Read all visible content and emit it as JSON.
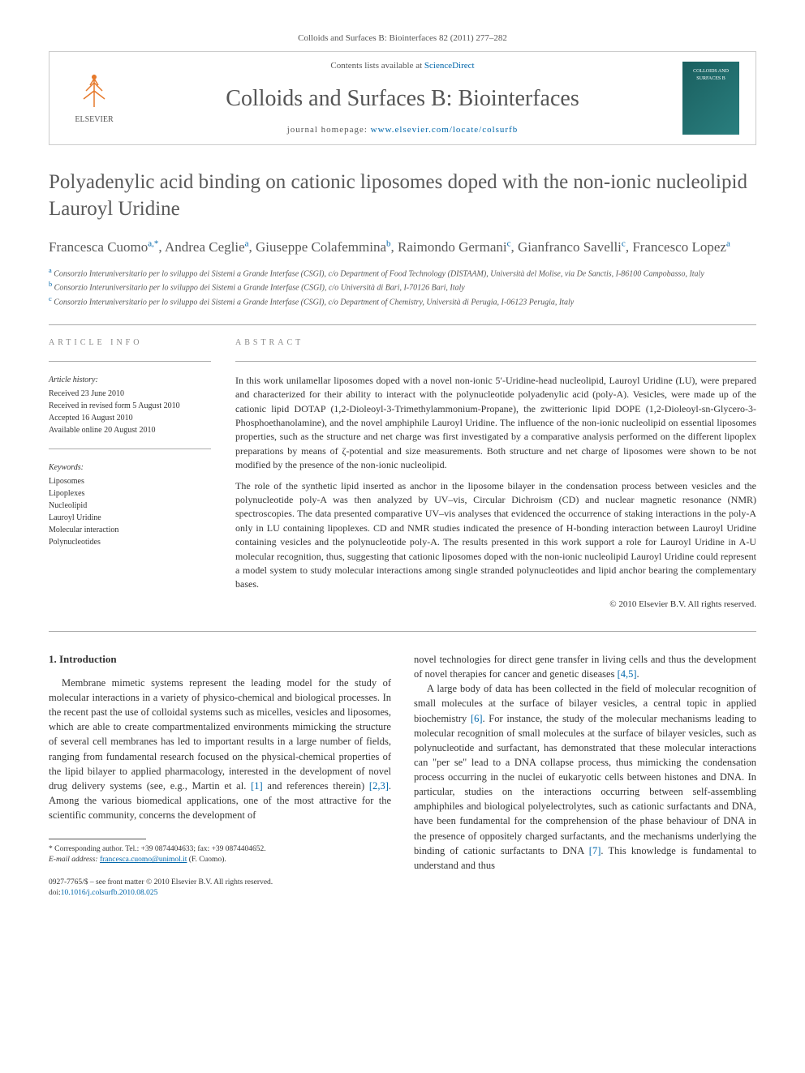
{
  "header": {
    "citation": "Colloids and Surfaces B: Biointerfaces 82 (2011) 277–282",
    "contents_prefix": "Contents lists available at ",
    "contents_link": "ScienceDirect",
    "journal_name": "Colloids and Surfaces B: Biointerfaces",
    "homepage_prefix": "journal homepage: ",
    "homepage_url": "www.elsevier.com/locate/colsurfb",
    "publisher_label": "ELSEVIER",
    "cover_text": "COLLOIDS AND SURFACES B"
  },
  "article": {
    "title": "Polyadenylic acid binding on cationic liposomes doped with the non-ionic nucleolipid Lauroyl Uridine",
    "authors_html": "Francesca Cuomo<sup>a,*</sup>, Andrea Ceglie<sup>a</sup>, Giuseppe Colafemmina<sup>b</sup>, Raimondo Germani<sup>c</sup>, Gianfranco Savelli<sup>c</sup>, Francesco Lopez<sup>a</sup>",
    "affiliations": [
      {
        "sup": "a",
        "text": "Consorzio Interuniversitario per lo sviluppo dei Sistemi a Grande Interfase (CSGI), c/o Department of Food Technology (DISTAAM), Università del Molise, via De Sanctis, I-86100 Campobasso, Italy"
      },
      {
        "sup": "b",
        "text": "Consorzio Interuniversitario per lo sviluppo dei Sistemi a Grande Interfase (CSGI), c/o Università di Bari, I-70126 Bari, Italy"
      },
      {
        "sup": "c",
        "text": "Consorzio Interuniversitario per lo sviluppo dei Sistemi a Grande Interfase (CSGI), c/o Department of Chemistry, Università di Perugia, I-06123 Perugia, Italy"
      }
    ]
  },
  "info": {
    "heading": "article info",
    "history_label": "Article history:",
    "history": [
      "Received 23 June 2010",
      "Received in revised form 5 August 2010",
      "Accepted 16 August 2010",
      "Available online 20 August 2010"
    ],
    "keywords_label": "Keywords:",
    "keywords": [
      "Liposomes",
      "Lipoplexes",
      "Nucleolipid",
      "Lauroyl Uridine",
      "Molecular interaction",
      "Polynucleotides"
    ]
  },
  "abstract": {
    "heading": "abstract",
    "paragraphs": [
      "In this work unilamellar liposomes doped with a novel non-ionic 5′-Uridine-head nucleolipid, Lauroyl Uridine (LU), were prepared and characterized for their ability to interact with the polynucleotide polyadenylic acid (poly-A). Vesicles, were made up of the cationic lipid DOTAP (1,2-Dioleoyl-3-Trimethylammonium-Propane), the zwitterionic lipid DOPE (1,2-Dioleoyl-sn-Glycero-3-Phosphoethanolamine), and the novel amphiphile Lauroyl Uridine. The influence of the non-ionic nucleolipid on essential liposomes properties, such as the structure and net charge was first investigated by a comparative analysis performed on the different lipoplex preparations by means of ζ-potential and size measurements. Both structure and net charge of liposomes were shown to be not modified by the presence of the non-ionic nucleolipid.",
      "The role of the synthetic lipid inserted as anchor in the liposome bilayer in the condensation process between vesicles and the polynucleotide poly-A was then analyzed by UV–vis, Circular Dichroism (CD) and nuclear magnetic resonance (NMR) spectroscopies. The data presented comparative UV–vis analyses that evidenced the occurrence of staking interactions in the poly-A only in LU containing lipoplexes. CD and NMR studies indicated the presence of H-bonding interaction between Lauroyl Uridine containing vesicles and the polynucleotide poly-A. The results presented in this work support a role for Lauroyl Uridine in A-U molecular recognition, thus, suggesting that cationic liposomes doped with the non-ionic nucleolipid Lauroyl Uridine could represent a model system to study molecular interactions among single stranded polynucleotides and lipid anchor bearing the complementary bases."
    ],
    "copyright": "© 2010 Elsevier B.V. All rights reserved."
  },
  "body": {
    "section_number": "1.",
    "section_title": "Introduction",
    "col1_p1": "Membrane mimetic systems represent the leading model for the study of molecular interactions in a variety of physico-chemical and biological processes. In the recent past the use of colloidal systems such as micelles, vesicles and liposomes, which are able to create compartmentalized environments mimicking the structure of several cell membranes has led to important results in a large number of fields, ranging from fundamental research focused on the physical-chemical properties of the lipid bilayer to applied pharmacology, interested in the development of novel drug delivery systems (see, e.g., Martin et al. ",
    "ref1": "[1]",
    "col1_p1b": " and references therein) ",
    "ref23": "[2,3]",
    "col1_p1c": ". Among the various biomedical applications, one of the most attractive for the scientific community, concerns the development of",
    "col2_p1a": "novel technologies for direct gene transfer in living cells and thus the development of novel therapies for cancer and genetic diseases ",
    "ref45": "[4,5]",
    "col2_p1b": ".",
    "col2_p2a": "A large body of data has been collected in the field of molecular recognition of small molecules at the surface of bilayer vesicles, a central topic in applied biochemistry ",
    "ref6": "[6]",
    "col2_p2b": ". For instance, the study of the molecular mechanisms leading to molecular recognition of small molecules at the surface of bilayer vesicles, such as polynucleotide and surfactant, has demonstrated that these molecular interactions can \"per se\" lead to a DNA collapse process, thus mimicking the condensation process occurring in the nuclei of eukaryotic cells between histones and DNA. In particular, studies on the interactions occurring between self-assembling amphiphiles and biological polyelectrolytes, such as cationic surfactants and DNA, have been fundamental for the comprehension of the phase behaviour of DNA in the presence of oppositely charged surfactants, and the mechanisms underlying the binding of cationic surfactants to DNA ",
    "ref7": "[7]",
    "col2_p2c": ". This knowledge is fundamental to understand and thus"
  },
  "footnote": {
    "corresponding": "* Corresponding author. Tel.: +39 0874404633; fax: +39 0874404652.",
    "email_label": "E-mail address: ",
    "email": "francesca.cuomo@unimol.it",
    "email_suffix": " (F. Cuomo)."
  },
  "footer": {
    "issn": "0927-7765/$ – see front matter © 2010 Elsevier B.V. All rights reserved.",
    "doi_label": "doi:",
    "doi": "10.1016/j.colsurfb.2010.08.025"
  },
  "colors": {
    "link": "#0066aa",
    "text_gray": "#5a5a5a",
    "elsevier_orange": "#e6792b"
  }
}
